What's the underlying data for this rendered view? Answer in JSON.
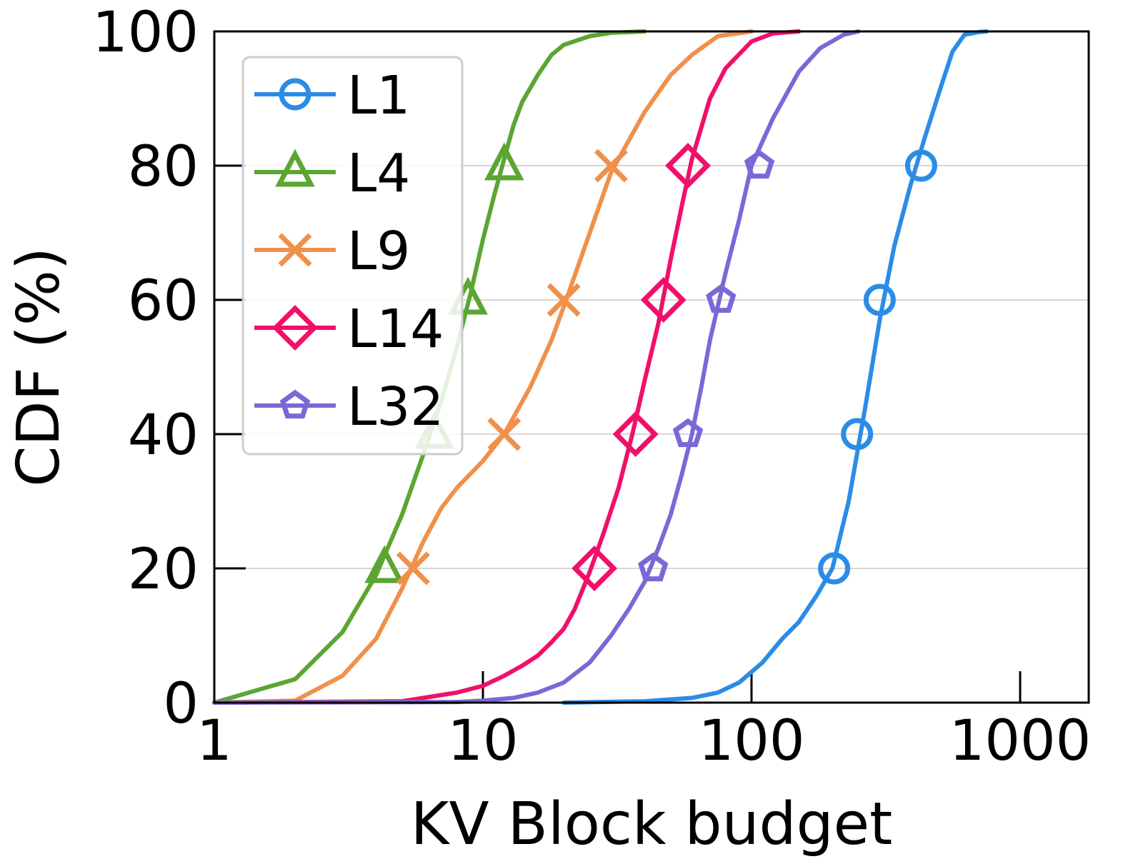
{
  "chart_data": {
    "type": "line",
    "xlabel": "KV Block budget",
    "ylabel": "CDF (%)",
    "xscale": "log",
    "xlim": [
      1,
      1800
    ],
    "ylim": [
      0,
      100
    ],
    "xticks": [
      1,
      10,
      100,
      1000
    ],
    "xtick_labels": [
      "1",
      "10",
      "100",
      "1000"
    ],
    "yticks": [
      0,
      20,
      40,
      60,
      80,
      100
    ],
    "ytick_labels": [
      "0",
      "20",
      "40",
      "60",
      "80",
      "100"
    ],
    "grid": "horizontal",
    "legend_position": "upper-left",
    "series": [
      {
        "name": "L1",
        "color": "#2b8ce6",
        "marker": "circle",
        "x": [
          20,
          40,
          60,
          75,
          90,
          110,
          130,
          150,
          175,
          200,
          230,
          265,
          300,
          340,
          390,
          440,
          500,
          560,
          620,
          700,
          750
        ],
        "y": [
          0,
          0.2,
          0.7,
          1.5,
          3,
          6,
          9.5,
          12,
          16,
          20,
          30,
          44,
          57,
          68,
          77,
          84,
          91,
          97,
          99.5,
          99.9,
          100
        ],
        "markers_x": [
          203,
          247,
          300,
          428
        ],
        "markers_y": [
          20,
          40,
          60,
          80
        ]
      },
      {
        "name": "L4",
        "color": "#5ba632",
        "marker": "triangle",
        "x": [
          1,
          2,
          3,
          4,
          5,
          6,
          7,
          8,
          9,
          10,
          11,
          12,
          13,
          14,
          16,
          18,
          20,
          25,
          30,
          40
        ],
        "y": [
          0,
          3.5,
          10.5,
          19,
          28,
          37,
          45,
          53,
          61,
          69,
          75.5,
          81,
          86,
          89.5,
          93.5,
          96.5,
          98,
          99.3,
          99.8,
          100
        ],
        "markers_x": [
          4.3,
          6.6,
          8.8,
          12
        ],
        "markers_y": [
          20,
          40,
          60,
          80
        ]
      },
      {
        "name": "L9",
        "color": "#f0904a",
        "marker": "x",
        "x": [
          1,
          2,
          3,
          4,
          5,
          6,
          7,
          8,
          10,
          12,
          15,
          18,
          20,
          25,
          30,
          40,
          50,
          60,
          75,
          100
        ],
        "y": [
          0,
          0.3,
          4,
          9.5,
          17,
          24,
          29,
          32,
          36,
          40,
          47,
          54,
          59,
          70,
          79,
          88,
          93.5,
          96.5,
          99.3,
          100
        ],
        "markers_x": [
          5.5,
          12,
          20,
          30
        ],
        "markers_y": [
          20,
          40,
          60,
          80
        ]
      },
      {
        "name": "L14",
        "color": "#f0106a",
        "marker": "diamond",
        "x": [
          1,
          5,
          8,
          10,
          12,
          14,
          16,
          18,
          20,
          22,
          25,
          28,
          32,
          36,
          40,
          45,
          50,
          55,
          60,
          70,
          80,
          100,
          120,
          150
        ],
        "y": [
          0,
          0.2,
          1.5,
          2.5,
          4,
          5.5,
          7,
          9,
          11,
          14,
          19.5,
          25,
          32,
          40,
          48,
          56.5,
          66,
          74,
          81,
          90,
          94.5,
          98.5,
          99.7,
          100
        ],
        "markers_x": [
          26,
          37,
          47,
          58
        ],
        "markers_y": [
          20,
          40,
          60,
          80
        ]
      },
      {
        "name": "L32",
        "color": "#7b68d6",
        "marker": "pentagon",
        "x": [
          1,
          8,
          10,
          13,
          16,
          20,
          25,
          30,
          35,
          40,
          45,
          50,
          55,
          60,
          65,
          70,
          80,
          90,
          100,
          120,
          150,
          180,
          220,
          250
        ],
        "y": [
          0,
          0.1,
          0.3,
          0.7,
          1.5,
          3,
          6,
          10,
          14,
          18,
          23,
          28,
          34,
          40,
          47,
          54,
          64,
          72,
          80,
          87,
          94,
          97.5,
          99.5,
          100
        ],
        "markers_x": [
          43,
          58,
          77,
          107
        ],
        "markers_y": [
          20,
          40,
          60,
          80
        ]
      }
    ]
  }
}
